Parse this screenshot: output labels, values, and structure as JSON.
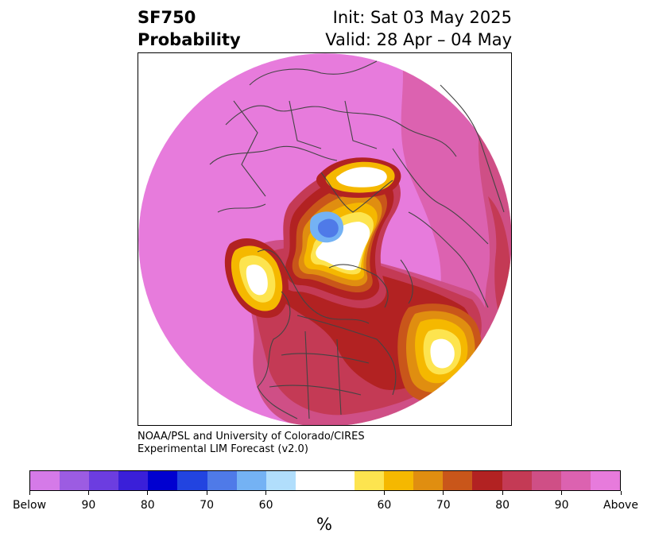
{
  "header": {
    "title_line1": "SF750",
    "title_line2": "Probability",
    "init": "Init: Sat 03 May 2025",
    "valid": "Valid: 28 Apr – 04 May"
  },
  "credit": {
    "line1": "NOAA/PSL and University of Colorado/CIRES",
    "line2": "Experimental LIM Forecast (v2.0)"
  },
  "colorbar": {
    "colors": [
      "#d57ae8",
      "#9c5ce2",
      "#6c3de0",
      "#3a1fd9",
      "#0000d0",
      "#2244e0",
      "#4f7ae8",
      "#74b2f4",
      "#b1defc",
      "#ffffff",
      "#fde44f",
      "#f5b800",
      "#e08e10",
      "#c9561a",
      "#b22222",
      "#c43a55",
      "#cf4f86",
      "#dc62b0",
      "#e77bdc"
    ],
    "labels": [
      "Below",
      "90",
      "80",
      "70",
      "60",
      "60",
      "70",
      "80",
      "90",
      "Above"
    ],
    "unit": "%"
  },
  "map": {
    "colors": {
      "above_base": "#e77bdc",
      "above_90": "#dc62b0",
      "above_85": "#cf4f86",
      "above_80": "#c43a55",
      "above_75": "#b22222",
      "above_70": "#c9561a",
      "above_65": "#e08e10",
      "above_60": "#f5b800",
      "above_55": "#fde44f",
      "neutral": "#ffffff",
      "below_60": "#74b2f4",
      "below_70": "#4f7ae8",
      "coast": "#444444"
    }
  }
}
